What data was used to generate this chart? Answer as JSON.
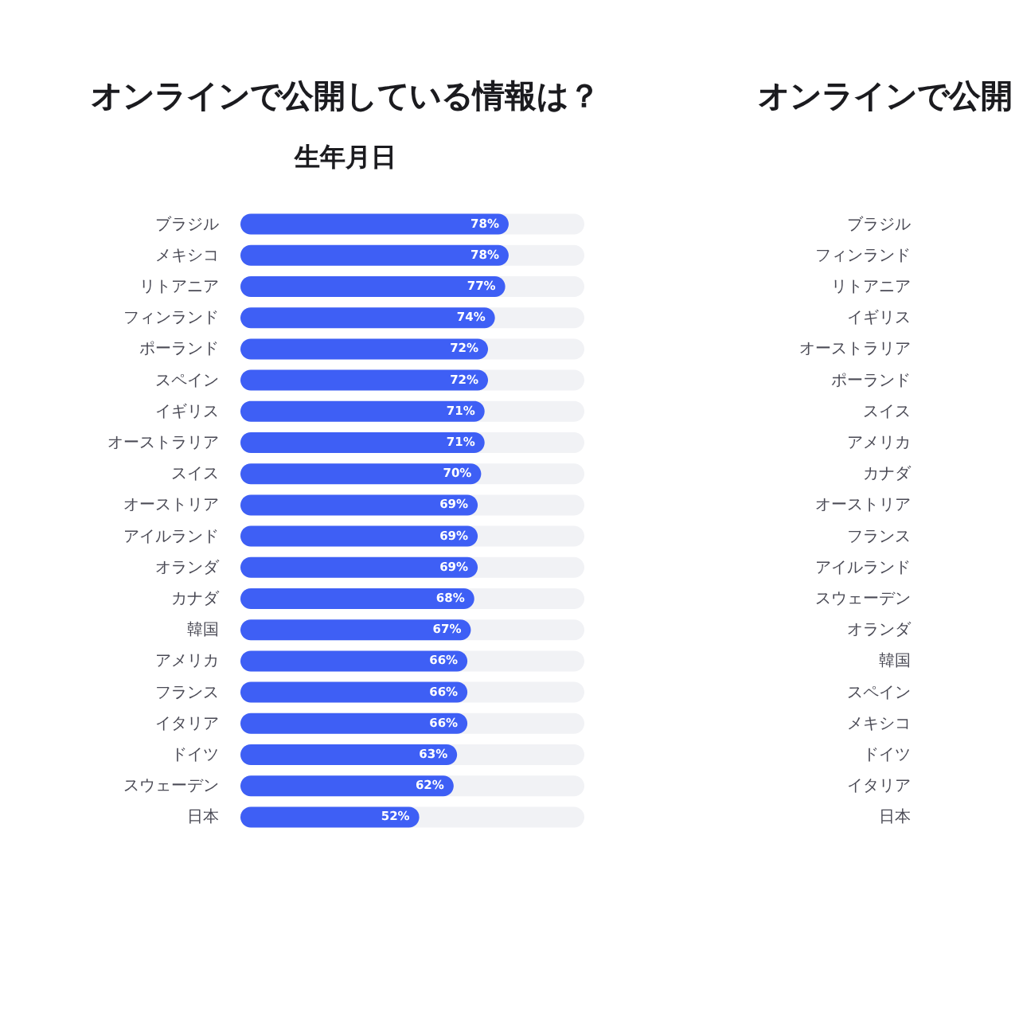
{
  "chart_data": [
    {
      "type": "bar",
      "orientation": "horizontal",
      "title": "オンラインで公開している情報は？",
      "subtitle": "生年月日",
      "categories": [
        "ブラジル",
        "メキシコ",
        "リトアニア",
        "フィンランド",
        "ポーランド",
        "スペイン",
        "イギリス",
        "オーストラリア",
        "スイス",
        "オーストリア",
        "アイルランド",
        "オランダ",
        "カナダ",
        "韓国",
        "アメリカ",
        "フランス",
        "イタリア",
        "ドイツ",
        "スウェーデン",
        "日本"
      ],
      "values": [
        78,
        78,
        77,
        74,
        72,
        72,
        71,
        71,
        70,
        69,
        69,
        69,
        68,
        67,
        66,
        66,
        66,
        63,
        62,
        52
      ],
      "value_labels": [
        "78%",
        "78%",
        "77%",
        "74%",
        "72%",
        "72%",
        "71%",
        "71%",
        "70%",
        "69%",
        "69%",
        "69%",
        "68%",
        "67%",
        "66%",
        "66%",
        "66%",
        "63%",
        "62%",
        "52%"
      ],
      "color": "#3e5ff5",
      "xlim": [
        0,
        100
      ],
      "tick_labels": "y"
    },
    {
      "type": "other",
      "title": "オンラインで公開",
      "categories": [
        "ブラジル",
        "フィンランド",
        "リトアニア",
        "イギリス",
        "オーストラリア",
        "ポーランド",
        "スイス",
        "アメリカ",
        "カナダ",
        "オーストリア",
        "フランス",
        "アイルランド",
        "スウェーデン",
        "オランダ",
        "韓国",
        "スペイン",
        "メキシコ",
        "ドイツ",
        "イタリア",
        "日本"
      ]
    }
  ]
}
